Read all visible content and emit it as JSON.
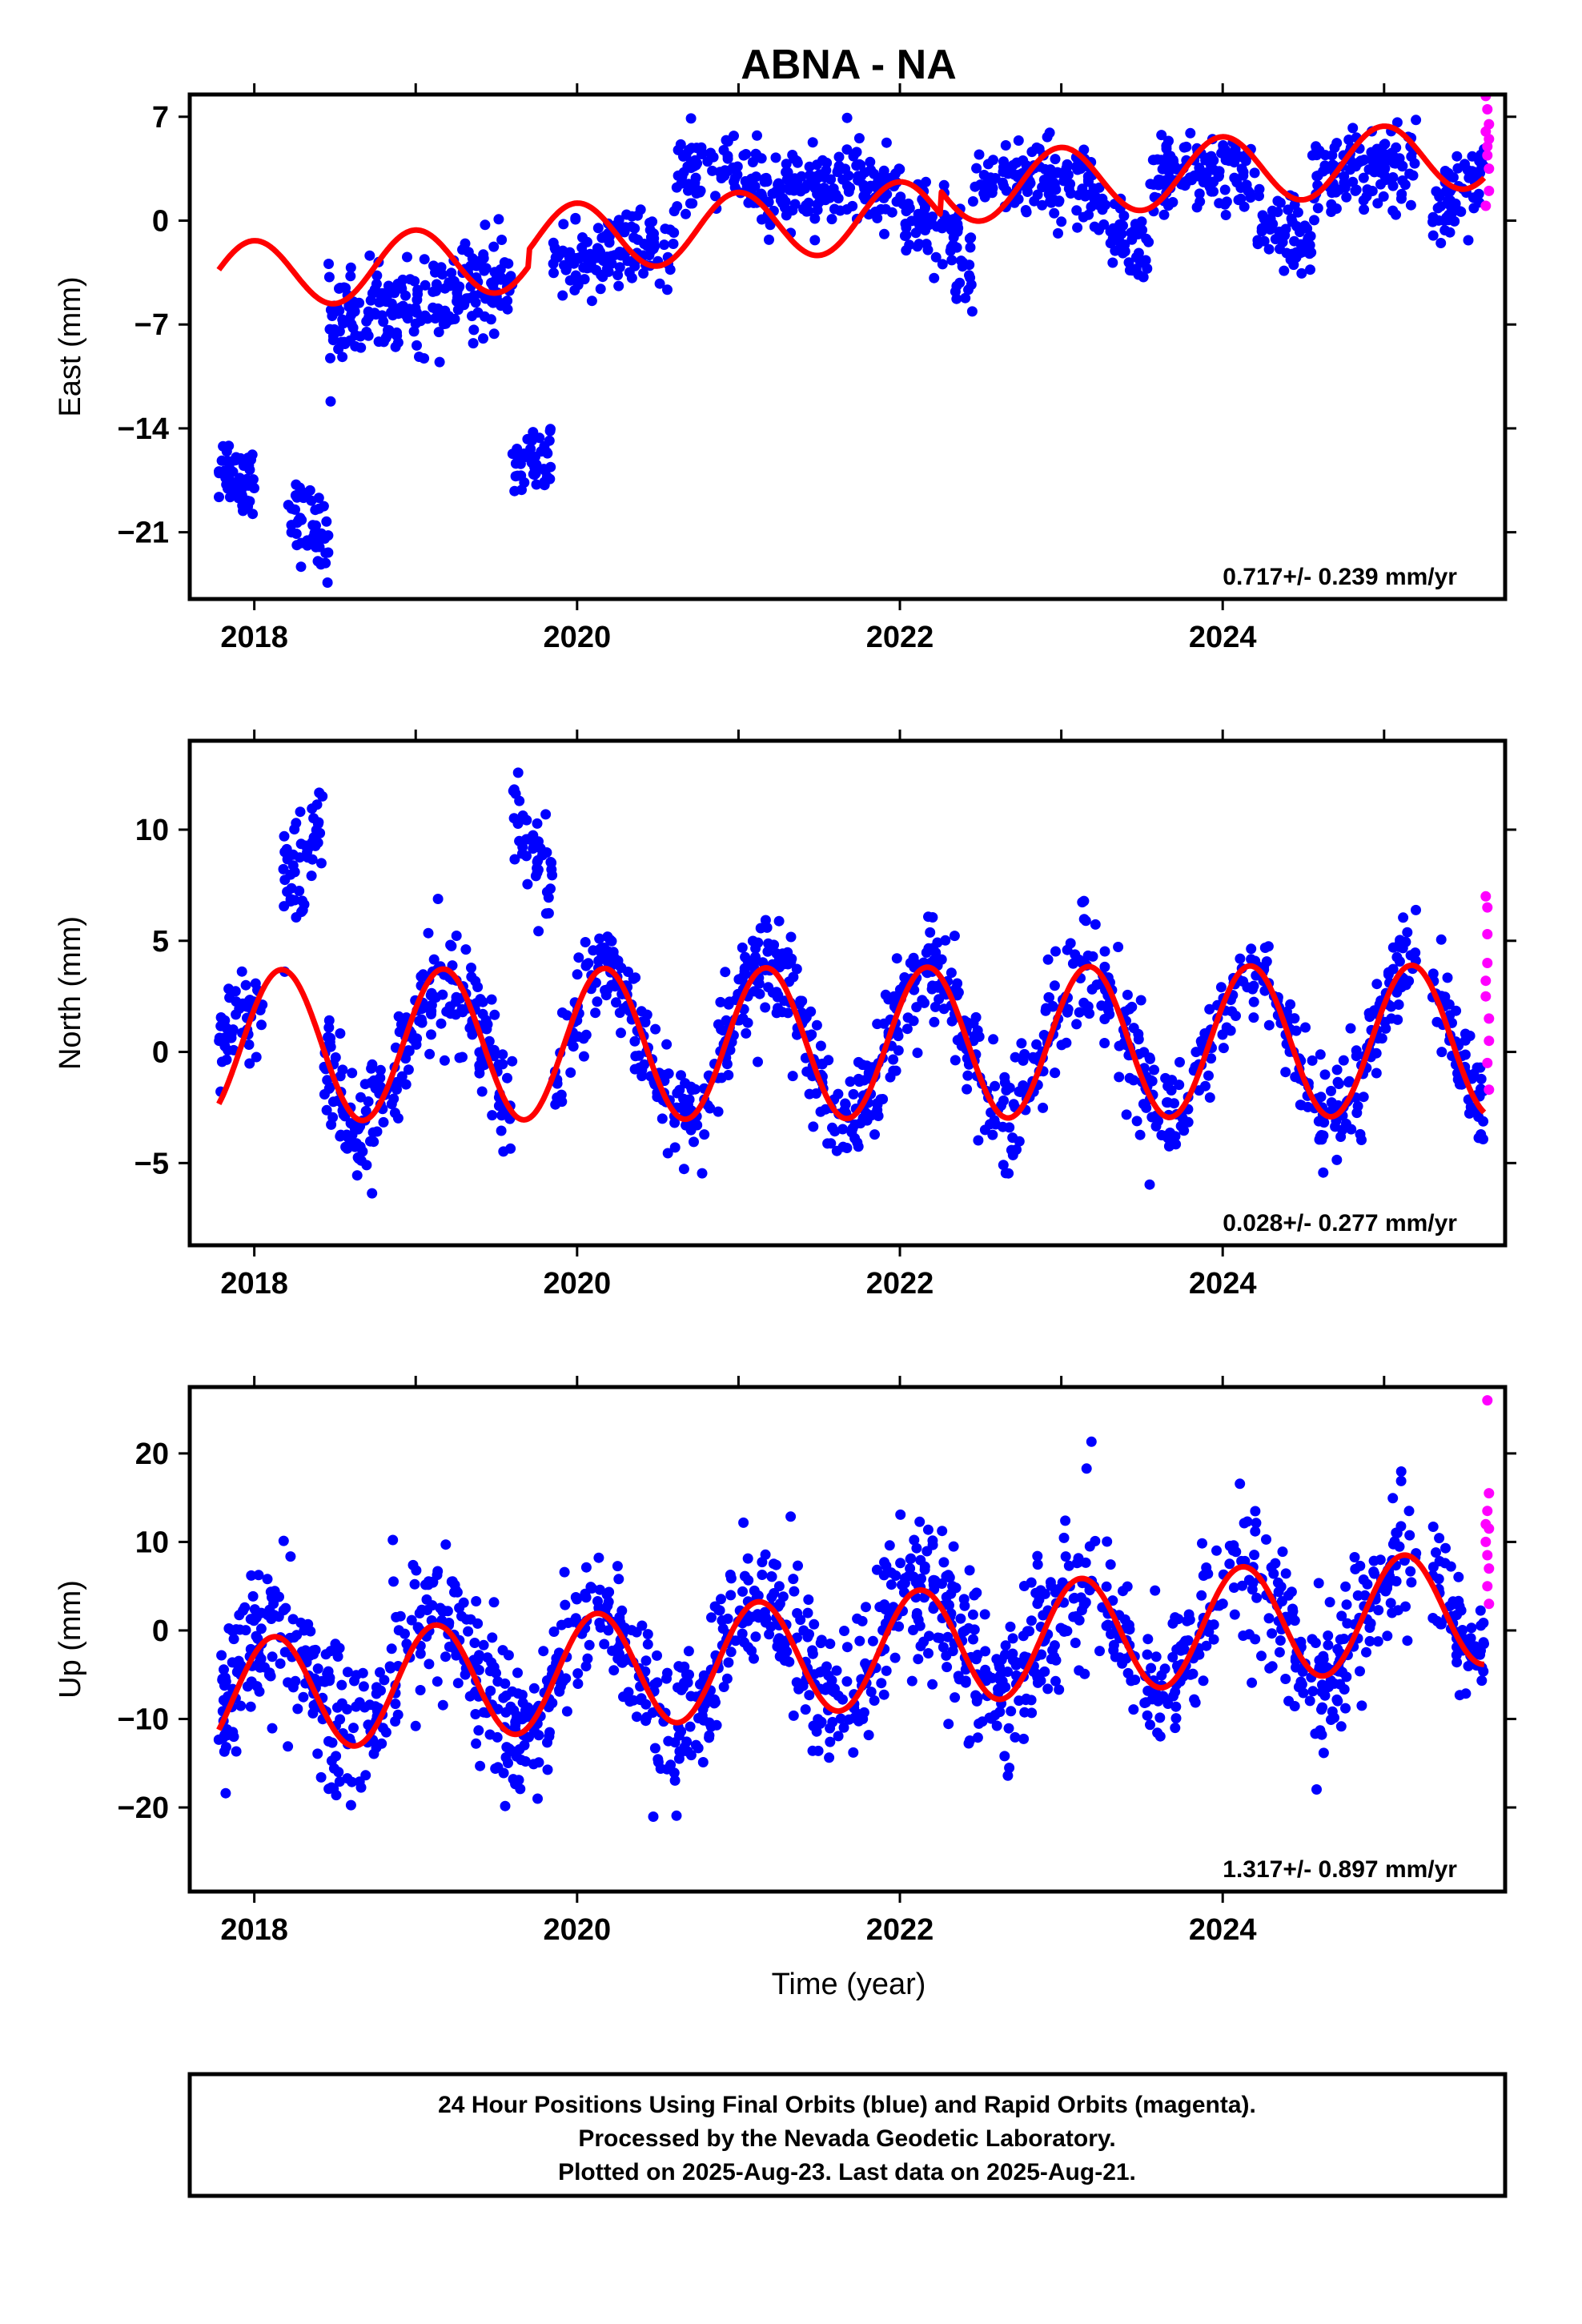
{
  "chart_data": {
    "type": "scatter",
    "title": "ABNA - NA",
    "xlabel": "Time (year)",
    "x_ticks": [
      2018,
      2020,
      2022,
      2024
    ],
    "xlim": [
      2017.6,
      2025.75
    ],
    "colors": {
      "final": "#0000ff",
      "rapid": "#ff00ff",
      "model": "#ff0000"
    },
    "panels": [
      {
        "ylabel": "East (mm)",
        "ylim": [
          -25.5,
          8.5
        ],
        "y_ticks": [
          7,
          0,
          -7,
          -14,
          -21
        ],
        "y_tick_labels": [
          "7",
          "0",
          "−7",
          "−14",
          "−21"
        ],
        "rate_label": "0.717+/- 0.239 mm/yr",
        "model": {
          "slope": 0.717,
          "ref_year": 2021.7,
          "offset": -1.0,
          "amplitude": 2.3,
          "phase": 1.6,
          "steps": [
            {
              "year": 2019.7,
              "delta": 1.1
            },
            {
              "year": 2022.25,
              "delta": 1.6
            }
          ]
        },
        "segments": [
          {
            "x": [
              2017.78,
              2018.0
            ],
            "trend": [
              -16.5,
              -17.5
            ],
            "noise": 1.3,
            "n": 50
          },
          {
            "x": [
              2018.2,
              2018.46
            ],
            "trend": [
              -19.5,
              -21.5
            ],
            "noise": 1.3,
            "n": 50
          },
          {
            "x": [
              2018.46,
              2019.6
            ],
            "trend": [
              -7,
              -4
            ],
            "noise": 1.5,
            "n": 230
          },
          {
            "x": [
              2019.6,
              2019.85
            ],
            "trend": [
              -17,
              -16
            ],
            "noise": 1.3,
            "n": 45
          },
          {
            "x": [
              2019.85,
              2020.6
            ],
            "trend": [
              -3,
              -1.5
            ],
            "noise": 1.2,
            "n": 130
          },
          {
            "x": [
              2020.6,
              2021.6
            ],
            "trend": [
              3,
              2
            ],
            "noise": 1.3,
            "n": 180
          },
          {
            "x": [
              2021.6,
              2022.0
            ],
            "trend": [
              3,
              2
            ],
            "noise": 1.3,
            "n": 70
          },
          {
            "x": [
              2022.0,
              2022.45
            ],
            "trend": [
              1,
              -3
            ],
            "noise": 1.5,
            "n": 80
          },
          {
            "x": [
              2022.45,
              2023.2
            ],
            "trend": [
              2.5,
              3
            ],
            "noise": 1.3,
            "n": 130
          },
          {
            "x": [
              2023.2,
              2023.55
            ],
            "trend": [
              1,
              -3
            ],
            "noise": 1.3,
            "n": 60
          },
          {
            "x": [
              2023.55,
              2024.2
            ],
            "trend": [
              3,
              3
            ],
            "noise": 1.3,
            "n": 120
          },
          {
            "x": [
              2024.2,
              2024.55
            ],
            "trend": [
              0,
              -2
            ],
            "noise": 1.3,
            "n": 60
          },
          {
            "x": [
              2024.55,
              2025.2
            ],
            "trend": [
              3,
              4
            ],
            "noise": 1.3,
            "n": 120
          },
          {
            "x": [
              2025.3,
              2025.62
            ],
            "trend": [
              0,
              3
            ],
            "noise": 1.3,
            "n": 60
          }
        ],
        "rapid": [
          [
            2025.63,
            8.4
          ],
          [
            2025.63,
            6.0
          ],
          [
            2025.64,
            5.0
          ],
          [
            2025.64,
            7.5
          ],
          [
            2025.65,
            3.5
          ],
          [
            2025.65,
            2.0
          ],
          [
            2025.65,
            6.5
          ],
          [
            2025.64,
            4.4
          ],
          [
            2025.63,
            1.0
          ],
          [
            2025.65,
            5.5
          ]
        ]
      },
      {
        "ylabel": "North (mm)",
        "ylim": [
          -8.7,
          14.0
        ],
        "y_ticks": [
          10,
          5,
          0,
          -5
        ],
        "y_tick_labels": [
          "10",
          "5",
          "0",
          "−5"
        ],
        "rate_label": "0.028+/- 0.277 mm/yr",
        "model": {
          "slope": 0.028,
          "ref_year": 2021.7,
          "offset": 0.4,
          "amplitude": 3.4,
          "phase": 0.5,
          "steps": []
        },
        "segments": [
          {
            "x": [
              2017.78,
              2018.05
            ],
            "trend": [
              1,
              2
            ],
            "noise": 1.0,
            "n": 50
          },
          {
            "x": [
              2018.18,
              2018.43
            ],
            "trend": [
              7.5,
              10.5
            ],
            "noise": 1.2,
            "n": 50
          },
          {
            "x": [
              2018.43,
              2019.6
            ],
            "trend": [
              null,
              null
            ],
            "noise": 1.3,
            "n": 230,
            "follow_model": true,
            "bias": -0.3
          },
          {
            "x": [
              2019.6,
              2019.85
            ],
            "trend": [
              10.5,
              7
            ],
            "noise": 1.4,
            "n": 45
          },
          {
            "x": [
              2019.85,
              2025.2
            ],
            "trend": [
              null,
              null
            ],
            "noise": 1.2,
            "n": 900,
            "follow_model": true,
            "bias": 0
          },
          {
            "x": [
              2025.3,
              2025.62
            ],
            "trend": [
              null,
              null
            ],
            "noise": 1.1,
            "n": 60,
            "follow_model": true,
            "bias": 0.5
          }
        ],
        "rapid": [
          [
            2025.63,
            7.0
          ],
          [
            2025.64,
            6.5
          ],
          [
            2025.64,
            5.3
          ],
          [
            2025.63,
            3.2
          ],
          [
            2025.65,
            1.5
          ],
          [
            2025.65,
            0.5
          ],
          [
            2025.64,
            -0.5
          ],
          [
            2025.65,
            -1.7
          ],
          [
            2025.63,
            2.5
          ],
          [
            2025.64,
            4.0
          ]
        ]
      },
      {
        "ylabel": "Up (mm)",
        "ylim": [
          -29.5,
          27.5
        ],
        "y_ticks": [
          20,
          10,
          0,
          -10,
          -20
        ],
        "y_tick_labels": [
          "20",
          "10",
          "0",
          "−10",
          "−20"
        ],
        "rate_label": "1.317+/- 0.897 mm/yr",
        "model": {
          "slope": 1.317,
          "ref_year": 2021.7,
          "offset": -2.5,
          "amplitude": 6.5,
          "phase": 0.8,
          "steps": []
        },
        "segments": [
          {
            "x": [
              2017.78,
              2019.6
            ],
            "trend": [
              null,
              null
            ],
            "noise": 4.5,
            "n": 340,
            "follow_model": true,
            "bias": 1
          },
          {
            "x": [
              2019.6,
              2025.2
            ],
            "trend": [
              null,
              null
            ],
            "noise": 4.2,
            "n": 1000,
            "follow_model": true,
            "bias": 0
          },
          {
            "x": [
              2025.3,
              2025.62
            ],
            "trend": [
              null,
              null
            ],
            "noise": 3.0,
            "n": 60,
            "follow_model": true,
            "bias": 1
          }
        ],
        "rapid": [
          [
            2025.64,
            26.0
          ],
          [
            2025.65,
            15.5
          ],
          [
            2025.64,
            13.5
          ],
          [
            2025.65,
            11.5
          ],
          [
            2025.63,
            10.0
          ],
          [
            2025.64,
            8.5
          ],
          [
            2025.65,
            7.0
          ],
          [
            2025.64,
            5.0
          ],
          [
            2025.65,
            3.0
          ],
          [
            2025.63,
            12.0
          ]
        ]
      }
    ]
  },
  "footer": {
    "line1": "24 Hour Positions Using Final Orbits (blue) and Rapid Orbits (magenta).",
    "line2": "Processed by the Nevada Geodetic Laboratory.",
    "line3": "Plotted on 2025-Aug-23. Last data on 2025-Aug-21."
  }
}
